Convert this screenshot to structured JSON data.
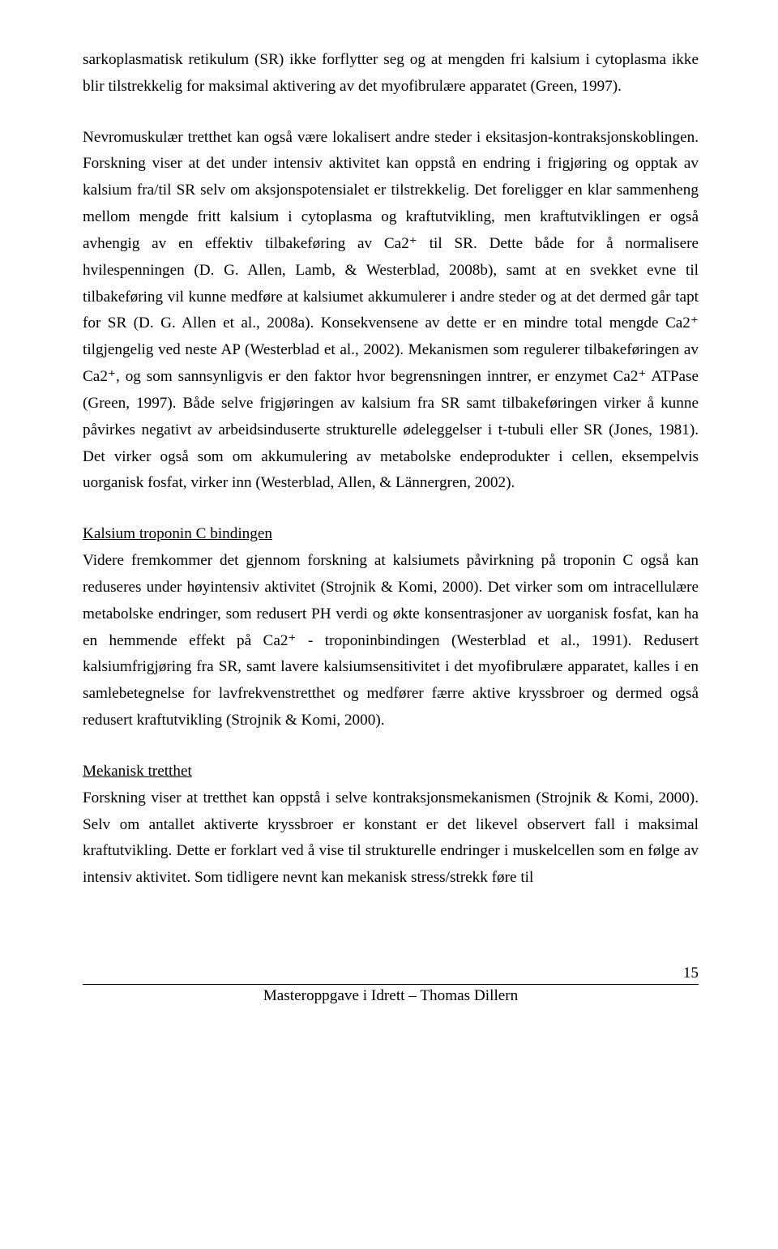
{
  "paragraphs": {
    "p1": "sarkoplasmatisk retikulum (SR) ikke forflytter seg og at mengden fri kalsium i cytoplasma ikke blir tilstrekkelig for maksimal aktivering av det myofibrulære apparatet (Green, 1997).",
    "p2": "Nevromuskulær tretthet kan også være lokalisert andre steder i eksitasjon-kontraksjonskoblingen. Forskning viser at det under intensiv aktivitet kan oppstå en endring i frigjøring og opptak av kalsium fra/til SR selv om aksjonspotensialet er tilstrekkelig. Det foreligger en klar sammenheng mellom mengde fritt kalsium i cytoplasma og kraftutvikling, men kraftutviklingen er også avhengig av en effektiv tilbakeføring av Ca2⁺ til SR. Dette både for å normalisere hvilespenningen (D. G. Allen, Lamb, & Westerblad, 2008b), samt at en svekket evne til tilbakeføring vil kunne medføre at kalsiumet akkumulerer i andre steder og at det dermed går tapt for SR (D. G. Allen et al., 2008a). Konsekvensene av dette er en mindre total mengde Ca2⁺ tilgjengelig ved neste AP (Westerblad et al., 2002). Mekanismen som regulerer tilbakeføringen av Ca2⁺, og som sannsynligvis er den faktor hvor begrensningen inntrer, er enzymet Ca2⁺ ATPase (Green, 1997). Både selve frigjøringen av kalsium fra SR samt tilbakeføringen virker å kunne påvirkes negativt av arbeidsinduserte strukturelle ødeleggelser i t-tubuli eller SR (Jones, 1981). Det virker også som om akkumulering av metabolske endeprodukter i cellen, eksempelvis uorganisk fosfat, virker inn (Westerblad, Allen, & Lännergren, 2002).",
    "h1": "Kalsium troponin C bindingen",
    "p3": "Videre fremkommer det gjennom forskning at kalsiumets påvirkning på troponin C også kan reduseres under høyintensiv aktivitet (Strojnik & Komi, 2000). Det virker som om intracellulære metabolske endringer, som redusert PH verdi og økte konsentrasjoner av uorganisk fosfat, kan ha en hemmende effekt på Ca2⁺ - troponinbindingen (Westerblad et al., 1991). Redusert kalsiumfrigjøring fra SR, samt lavere kalsiumsensitivitet i det myofibrulære apparatet, kalles i en samlebetegnelse for lavfrekvenstretthet og medfører færre aktive kryssbroer og dermed også redusert kraftutvikling (Strojnik & Komi, 2000).",
    "h2": "Mekanisk tretthet",
    "p4": "Forskning viser at tretthet kan oppstå i selve kontraksjonsmekanismen (Strojnik & Komi, 2000). Selv om antallet aktiverte kryssbroer er konstant er det likevel observert fall i maksimal kraftutvikling. Dette er forklart ved å vise til strukturelle endringer i muskelcellen som en følge av intensiv aktivitet. Som tidligere nevnt kan mekanisk stress/strekk føre til"
  },
  "footer": {
    "page": "15",
    "text": "Masteroppgave i Idrett – Thomas Dillern"
  }
}
